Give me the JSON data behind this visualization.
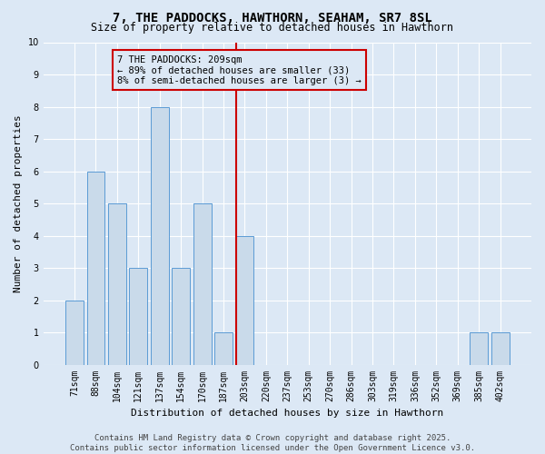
{
  "title": "7, THE PADDOCKS, HAWTHORN, SEAHAM, SR7 8SL",
  "subtitle": "Size of property relative to detached houses in Hawthorn",
  "xlabel": "Distribution of detached houses by size in Hawthorn",
  "ylabel": "Number of detached properties",
  "categories": [
    "71sqm",
    "88sqm",
    "104sqm",
    "121sqm",
    "137sqm",
    "154sqm",
    "170sqm",
    "187sqm",
    "203sqm",
    "220sqm",
    "237sqm",
    "253sqm",
    "270sqm",
    "286sqm",
    "303sqm",
    "319sqm",
    "336sqm",
    "352sqm",
    "369sqm",
    "385sqm",
    "402sqm"
  ],
  "values": [
    2,
    6,
    5,
    3,
    8,
    3,
    5,
    1,
    4,
    0,
    0,
    0,
    0,
    0,
    0,
    0,
    0,
    0,
    0,
    1,
    1
  ],
  "bar_color": "#c9daea",
  "bar_edge_color": "#5b9bd5",
  "highlight_line_index": 8,
  "highlight_line_color": "#cc0000",
  "annotation_text": "7 THE PADDOCKS: 209sqm\n← 89% of detached houses are smaller (33)\n8% of semi-detached houses are larger (3) →",
  "annotation_box_color": "#cc0000",
  "ylim": [
    0,
    10
  ],
  "yticks": [
    0,
    1,
    2,
    3,
    4,
    5,
    6,
    7,
    8,
    9,
    10
  ],
  "background_color": "#dce8f5",
  "grid_color": "#ffffff",
  "footer_line1": "Contains HM Land Registry data © Crown copyright and database right 2025.",
  "footer_line2": "Contains public sector information licensed under the Open Government Licence v3.0.",
  "title_fontsize": 10,
  "subtitle_fontsize": 8.5,
  "axis_label_fontsize": 8,
  "tick_fontsize": 7,
  "annotation_fontsize": 7.5,
  "footer_fontsize": 6.5
}
